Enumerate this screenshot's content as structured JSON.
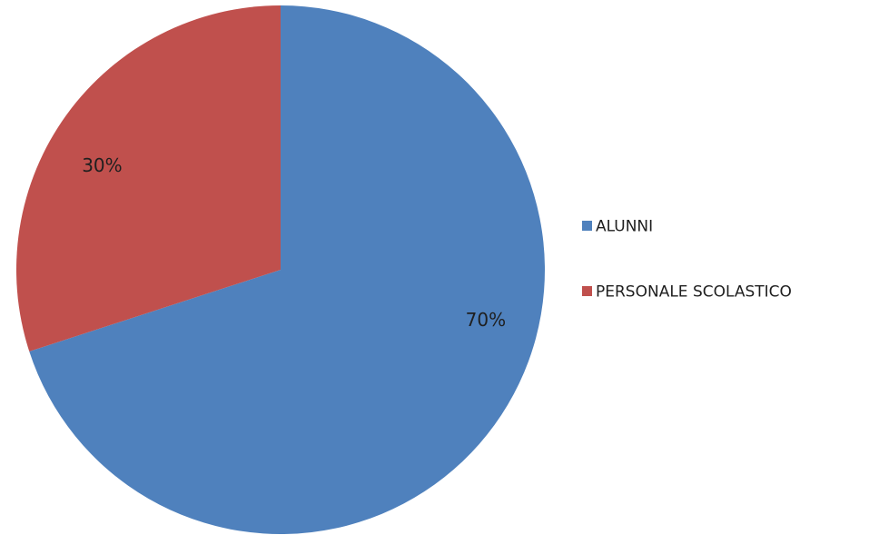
{
  "chart_data": {
    "type": "pie",
    "categories": [
      "ALUNNI",
      "PERSONALE SCOLASTICO"
    ],
    "values": [
      70,
      30
    ],
    "data_labels": [
      "70%",
      "30%"
    ],
    "colors": [
      "#4F81BD",
      "#C0504D"
    ],
    "start_angle_deg": 0,
    "direction": "clockwise",
    "legend_position": "right"
  }
}
